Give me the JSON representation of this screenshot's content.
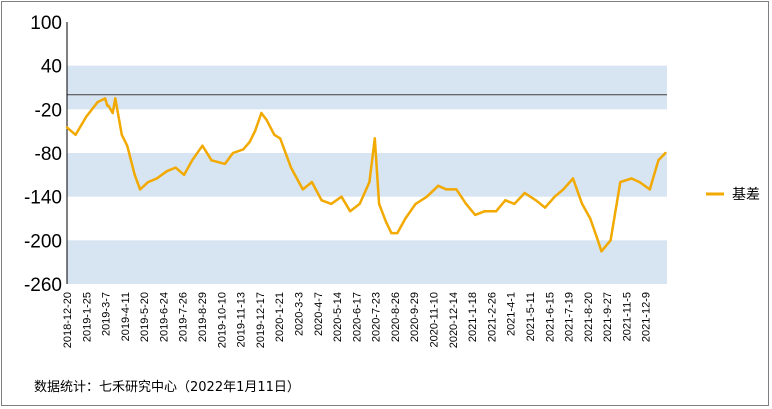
{
  "source_note": "数据统计：七禾研究中心（2022年1月11日）",
  "colors": {
    "line": "#f2a900",
    "band": "#d7e4f1",
    "zero_line": "#404040",
    "frame": "#7f7f7f"
  },
  "chart_data": {
    "type": "line",
    "ylim": [
      -260,
      100
    ],
    "y_ticks": [
      100,
      40,
      -20,
      -80,
      -140,
      -200,
      -260
    ],
    "shaded_bands": [
      [
        -20,
        40
      ],
      [
        -140,
        -80
      ],
      [
        -260,
        -200
      ]
    ],
    "reference_line": 0,
    "legend": {
      "position": "right",
      "entries": [
        "基差"
      ]
    },
    "x_tick_labels": [
      "2018-12-20",
      "2019-1-25",
      "2019-3-7",
      "2019-4-11",
      "2019-5-20",
      "2019-6-24",
      "2019-7-26",
      "2019-8-29",
      "2019-10-10",
      "2019-11-13",
      "2019-12-17",
      "2020-1-21",
      "2020-3-3",
      "2020-4-7",
      "2020-5-14",
      "2020-6-17",
      "2020-7-23",
      "2020-8-26",
      "2020-9-29",
      "2020-11-10",
      "2020-12-14",
      "2021-1-18",
      "2021-2-26",
      "2021-4-1",
      "2021-5-11",
      "2021-6-15",
      "2021-7-19",
      "2021-8-20",
      "2021-9-27",
      "2021-11-5",
      "2021-12-9"
    ],
    "series": [
      {
        "name": "基差",
        "x": [
          "2018-12-20",
          "2019-1-5",
          "2019-1-25",
          "2019-2-15",
          "2019-3-1",
          "2019-3-5",
          "2019-3-7",
          "2019-3-15",
          "2019-3-20",
          "2019-4-1",
          "2019-4-11",
          "2019-4-25",
          "2019-5-5",
          "2019-5-20",
          "2019-6-5",
          "2019-6-24",
          "2019-7-10",
          "2019-7-26",
          "2019-8-10",
          "2019-8-29",
          "2019-9-15",
          "2019-10-10",
          "2019-10-25",
          "2019-11-13",
          "2019-11-25",
          "2019-12-5",
          "2019-12-17",
          "2019-12-27",
          "2020-1-10",
          "2020-1-21",
          "2020-2-10",
          "2020-3-3",
          "2020-3-20",
          "2020-4-7",
          "2020-4-25",
          "2020-5-14",
          "2020-5-30",
          "2020-6-17",
          "2020-7-5",
          "2020-7-15",
          "2020-7-23",
          "2020-8-5",
          "2020-8-15",
          "2020-8-26",
          "2020-9-10",
          "2020-9-29",
          "2020-10-20",
          "2020-11-10",
          "2020-11-25",
          "2020-12-14",
          "2021-1-1",
          "2021-1-18",
          "2021-2-5",
          "2021-2-26",
          "2021-3-15",
          "2021-4-1",
          "2021-4-20",
          "2021-5-11",
          "2021-5-28",
          "2021-6-15",
          "2021-7-1",
          "2021-7-19",
          "2021-8-5",
          "2021-8-20",
          "2021-9-1",
          "2021-9-10",
          "2021-9-27",
          "2021-10-15",
          "2021-11-5",
          "2021-11-20",
          "2021-12-9",
          "2021-12-25",
          "2022-1-7"
        ],
        "values": [
          -45,
          -55,
          -30,
          -10,
          -5,
          -15,
          -15,
          -25,
          -5,
          -55,
          -70,
          -110,
          -130,
          -120,
          -115,
          -105,
          -100,
          -110,
          -90,
          -70,
          -90,
          -95,
          -80,
          -75,
          -65,
          -50,
          -25,
          -35,
          -55,
          -60,
          -100,
          -130,
          -120,
          -145,
          -150,
          -140,
          -160,
          -150,
          -120,
          -60,
          -150,
          -175,
          -190,
          -190,
          -170,
          -150,
          -140,
          -125,
          -130,
          -130,
          -150,
          -165,
          -160,
          -160,
          -145,
          -150,
          -135,
          -145,
          -155,
          -140,
          -130,
          -115,
          -150,
          -170,
          -195,
          -215,
          -200,
          -120,
          -115,
          -120,
          -130,
          -90,
          -80
        ]
      }
    ]
  }
}
